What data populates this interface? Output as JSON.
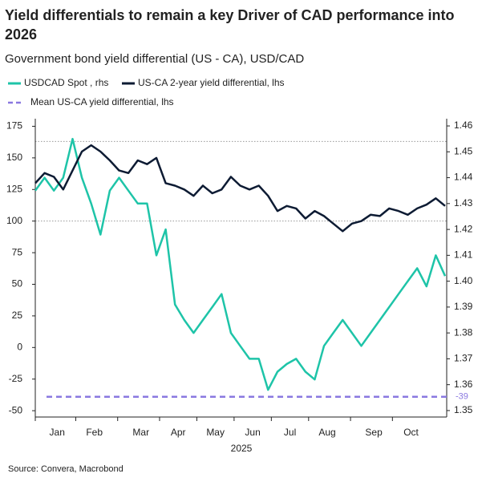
{
  "chart_data": {
    "type": "line",
    "title": "Yield differentials to remain a key Driver of CAD performance into 2026",
    "subtitle": "Government bond yield differential (US - CA), USD/CAD",
    "source": "Source: Convera, Macrobond",
    "xlabel": "2025",
    "categories": [
      null,
      null,
      "Jan",
      null,
      null,
      null,
      "Feb",
      null,
      null,
      null,
      null,
      "Mar",
      null,
      null,
      null,
      "Apr",
      null,
      null,
      null,
      "May",
      null,
      null,
      null,
      "Jun",
      null,
      null,
      null,
      "Jul",
      null,
      null,
      null,
      "Aug",
      null,
      null,
      null,
      null,
      "Sep",
      null,
      null,
      null,
      "Oct",
      null,
      null,
      null,
      null
    ],
    "series": [
      {
        "name": "USDCAD Spot , rhs",
        "color": "#1ec4a8",
        "axis": "y2",
        "values": [
          1.435,
          1.44,
          1.435,
          1.44,
          1.455,
          1.44,
          1.43,
          1.418,
          1.435,
          1.44,
          1.435,
          1.43,
          1.43,
          1.41,
          1.42,
          1.391,
          1.385,
          1.38,
          1.385,
          1.39,
          1.395,
          1.38,
          1.375,
          1.37,
          1.37,
          1.358,
          1.365,
          1.368,
          1.37,
          1.365,
          1.362,
          1.375,
          1.38,
          1.385,
          1.38,
          1.375,
          1.38,
          1.385,
          1.39,
          1.395,
          1.4,
          1.405,
          1.398,
          1.41,
          1.402
        ]
      },
      {
        "name": "US-CA 2-year yield differential, lhs",
        "color": "#0d1b33",
        "values": [
          130,
          138,
          135,
          125,
          140,
          155,
          160,
          155,
          148,
          140,
          138,
          148,
          145,
          150,
          130,
          128,
          125,
          120,
          128,
          122,
          125,
          135,
          128,
          125,
          128,
          120,
          108,
          112,
          110,
          102,
          108,
          104,
          98,
          92,
          98,
          100,
          105,
          104,
          110,
          108,
          105,
          110,
          113,
          118,
          112
        ]
      }
    ],
    "mean_line": {
      "name": "Mean US-CA yield differential, lhs",
      "color": "#8a78e0",
      "value": -39
    },
    "reference_lines": [
      163,
      100
    ],
    "ylim": [
      -55,
      181
    ],
    "yticks": [
      -50,
      -25,
      0,
      25,
      50,
      75,
      100,
      125,
      150,
      175
    ],
    "y2lim": [
      1.3475,
      1.4628
    ],
    "y2ticks": [
      1.35,
      1.36,
      1.37,
      1.38,
      1.39,
      {
        "value": 1.4,
        "label": "1.40"
      },
      1.41,
      1.42,
      1.43,
      1.44,
      1.45,
      1.46
    ]
  }
}
